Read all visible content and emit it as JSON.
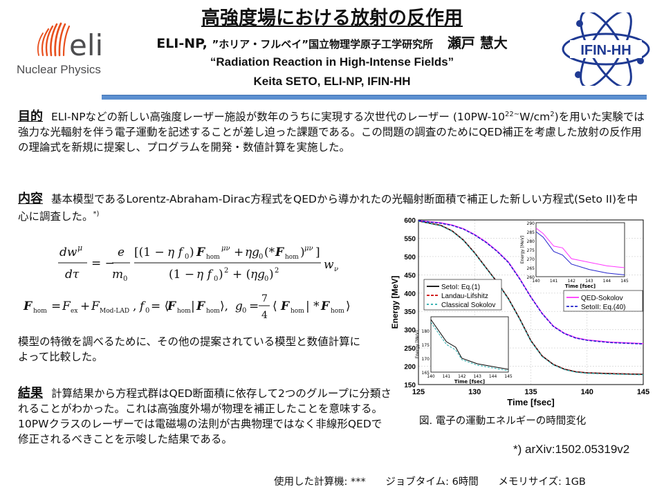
{
  "header": {
    "title_jp": "高強度場における放射の反作用",
    "org_line": "ELI-NP, ”ホリア・フルベイ”国立物理学原子工学研究所",
    "org_prefix": "ELI-NP,",
    "org_rest": "”ホリア・フルベイ”国立物理学原子工学研究所",
    "author_jp": "瀬戸 慧大",
    "title_en": "“Radiation Reaction in High-Intense Fields”",
    "author_en": "Keita SETO, ELI-NP, IFIN-HH"
  },
  "logos": {
    "eli_mark": "eli",
    "eli_subtitle": "Nuclear Physics",
    "ifin": "IFIN-HH"
  },
  "sections": {
    "purpose": {
      "heading": "目的",
      "text_a": "ELI-NPなどの新しい高強度レーザー施設が数年のうちに実現する次世代のレーザー (10PW-10",
      "sup": "22~",
      "text_b": "W/cm",
      "sup2": "2",
      "text_c": ")を用いた実験では強力な光輻射を伴う電子運動を記述することが差し迫った課題である。この問題の調査のためにQED補正を考慮した放射の反作用の理論式を新規に提案し、プログラムを開発・数値計算を実施した。"
    },
    "content": {
      "heading": "内容",
      "text": "基本模型であるLorentz-Abraham-Dirac方程式をQEDから導かれたの光輻射断面積で補正した新しい方程式(Seto II)を中心に調査した。",
      "note": "*)"
    },
    "models": {
      "text": "模型の特徴を調べるために、その他の提案されている模型と数値計算によって比較した。"
    },
    "result": {
      "heading": "結果",
      "text": "計算結果から方程式群はQED断面積に依存して2つのグループに分類されることがわかった。これは高強度外場が物理を補正したことを意味する。10PWクラスのレーザーでは電磁場の法則が古典物理ではなく非線形QEDで修正されるべきことを示唆した結果である。"
    }
  },
  "equations": {
    "eq1_lhs": "dw^μ/dτ = −(e/m₀)",
    "eq2": "F_hom = F_ex + F_Mod-LAD , f₀ = ⟨F_hom | F_hom⟩, g₀ = (7/4)⟨F_hom | *F_hom⟩"
  },
  "chart_data": {
    "type": "line",
    "xlabel": "Time [fsec]",
    "ylabel": "Energy [MeV]",
    "xlim": [
      125,
      145
    ],
    "ylim": [
      150,
      600
    ],
    "xticks": [
      "125",
      "130",
      "135",
      "140",
      "145"
    ],
    "yticks": [
      "150",
      "200",
      "250",
      "300",
      "350",
      "400",
      "450",
      "500",
      "550",
      "600"
    ],
    "grid": true,
    "series": [
      {
        "name": "SetoI: Eq.(1)",
        "color": "#000000",
        "x": [
          125,
          127,
          128,
          129,
          130,
          131,
          132,
          133,
          134,
          135,
          136,
          137,
          138,
          139,
          140,
          142,
          145
        ],
        "y": [
          597,
          585,
          570,
          545,
          510,
          470,
          430,
          385,
          330,
          270,
          228,
          205,
          192,
          185,
          182,
          180,
          178
        ]
      },
      {
        "name": "Landau-Lifshitz",
        "color": "#cc0000",
        "x": [
          125,
          127,
          128,
          129,
          130,
          131,
          132,
          133,
          134,
          135,
          136,
          137,
          138,
          139,
          140,
          142,
          145
        ],
        "y": [
          597,
          585,
          570,
          545,
          510,
          470,
          430,
          385,
          330,
          270,
          228,
          205,
          192,
          185,
          182,
          180,
          178
        ]
      },
      {
        "name": "Classical Sokolov",
        "color": "#22aaaa",
        "x": [
          125,
          127,
          128,
          129,
          130,
          131,
          132,
          133,
          134,
          135,
          136,
          137,
          138,
          139,
          140,
          142,
          145
        ],
        "y": [
          597,
          584,
          569,
          544,
          509,
          469,
          429,
          384,
          329,
          269,
          227,
          204,
          191,
          184,
          181,
          179,
          177
        ]
      },
      {
        "name": "QED-Sokolov",
        "color": "#ff33ff",
        "x": [
          125,
          127,
          128,
          129,
          130,
          131,
          132,
          133,
          134,
          135,
          136,
          137,
          138,
          139,
          140,
          142,
          145
        ],
        "y": [
          598,
          592,
          586,
          576,
          560,
          540,
          515,
          485,
          440,
          390,
          345,
          310,
          290,
          278,
          272,
          266,
          262
        ]
      },
      {
        "name": "SetoII: Eq.(40)",
        "color": "#2222cc",
        "x": [
          125,
          127,
          128,
          129,
          130,
          131,
          132,
          133,
          134,
          135,
          136,
          137,
          138,
          139,
          140,
          142,
          145
        ],
        "y": [
          598,
          591,
          585,
          575,
          559,
          539,
          514,
          484,
          439,
          389,
          344,
          309,
          289,
          277,
          271,
          265,
          261
        ]
      }
    ],
    "inset_top": {
      "xlabel": "Time [fsec]",
      "ylabel": "Energy [MeV]",
      "xlim": [
        140,
        145
      ],
      "ylim": [
        260,
        290
      ],
      "xticks": [
        "140",
        "141",
        "142",
        "143",
        "144",
        "145"
      ],
      "yticks": [
        "260",
        "265",
        "270",
        "275",
        "280",
        "285",
        "290"
      ]
    },
    "inset_bottom": {
      "xlabel": "Time [fsec]",
      "ylabel": "Energy [MeV]",
      "xlim": [
        140,
        145
      ],
      "ylim": [
        165,
        185
      ],
      "xticks": [
        "140",
        "141",
        "142",
        "143",
        "144",
        "145"
      ],
      "yticks": [
        "165",
        "170",
        "175",
        "180"
      ]
    }
  },
  "caption": "図. 電子の運動エネルギーの時間変化",
  "reference": "*) arXiv:1502.05319v2",
  "footer": {
    "machine": "使用した計算機: ***",
    "job_time": "ジョブタイム: 6時間",
    "memory": "メモリサイズ: 1GB"
  },
  "colors": {
    "divider": "#5b8fd0",
    "eli_orange": "#e8501e",
    "eli_gray": "#4d4d4f",
    "ifin_blue": "#1f3a93"
  }
}
